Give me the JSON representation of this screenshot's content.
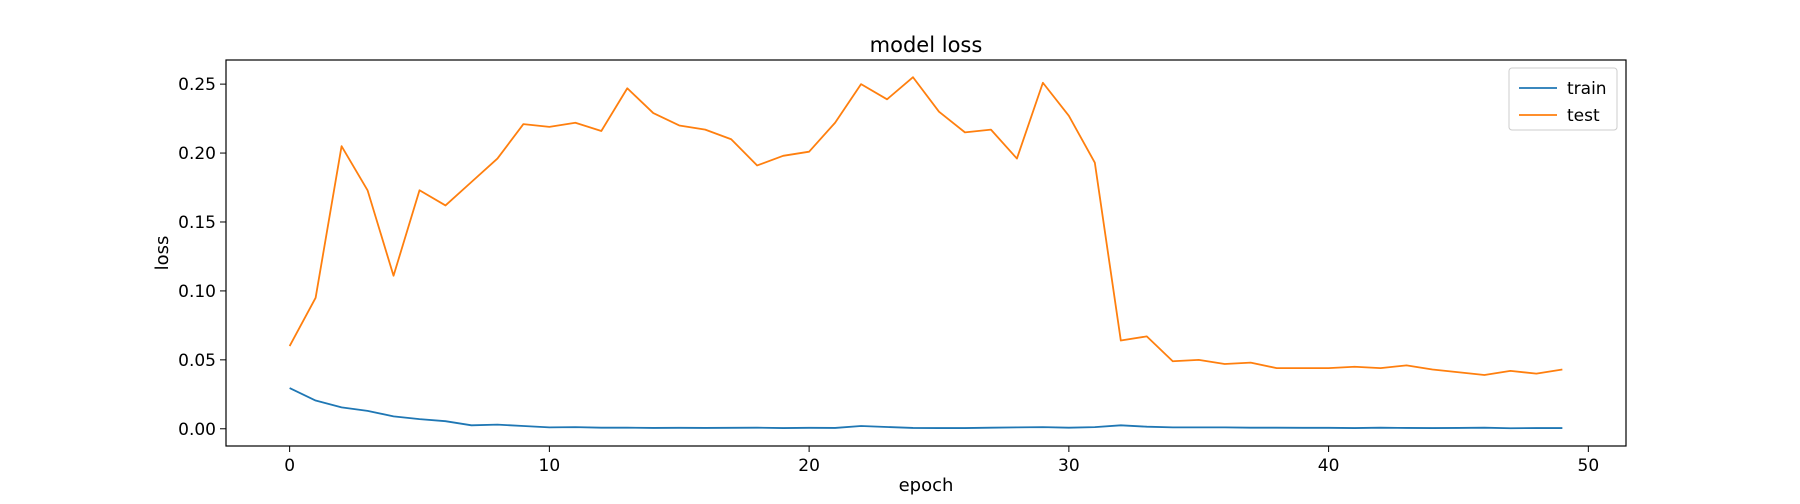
{
  "chart_data": {
    "type": "line",
    "title": "model loss",
    "xlabel": "epoch",
    "ylabel": "loss",
    "xlim": [
      -2.45,
      51.45
    ],
    "ylim": [
      -0.0125,
      0.2675
    ],
    "xticks": [
      0,
      10,
      20,
      30,
      40,
      50
    ],
    "yticks": [
      0.0,
      0.05,
      0.1,
      0.15,
      0.2,
      0.25
    ],
    "ytick_labels": [
      "0.00",
      "0.05",
      "0.10",
      "0.15",
      "0.20",
      "0.25"
    ],
    "legend_position": "top-right",
    "grid": false,
    "x": [
      0,
      1,
      2,
      3,
      4,
      5,
      6,
      7,
      8,
      9,
      10,
      11,
      12,
      13,
      14,
      15,
      16,
      17,
      18,
      19,
      20,
      21,
      22,
      23,
      24,
      25,
      26,
      27,
      28,
      29,
      30,
      31,
      32,
      33,
      34,
      35,
      36,
      37,
      38,
      39,
      40,
      41,
      42,
      43,
      44,
      45,
      46,
      47,
      48,
      49
    ],
    "series": [
      {
        "name": "train",
        "color": "#1f77b4",
        "values": [
          0.0295,
          0.0205,
          0.0155,
          0.013,
          0.009,
          0.007,
          0.0055,
          0.0025,
          0.003,
          0.002,
          0.001,
          0.0012,
          0.0008,
          0.0008,
          0.0006,
          0.0007,
          0.0006,
          0.0007,
          0.0008,
          0.0005,
          0.0007,
          0.0006,
          0.002,
          0.0013,
          0.0006,
          0.0005,
          0.0005,
          0.0008,
          0.001,
          0.0012,
          0.0008,
          0.0012,
          0.0025,
          0.0015,
          0.001,
          0.001,
          0.001,
          0.0008,
          0.0008,
          0.0007,
          0.0007,
          0.0005,
          0.0008,
          0.0006,
          0.0005,
          0.0006,
          0.0008,
          0.0004,
          0.0005,
          0.0005
        ]
      },
      {
        "name": "test",
        "color": "#ff7f0e",
        "values": [
          0.06,
          0.095,
          0.205,
          0.173,
          0.111,
          0.173,
          0.162,
          0.179,
          0.196,
          0.221,
          0.219,
          0.222,
          0.216,
          0.247,
          0.229,
          0.22,
          0.217,
          0.21,
          0.191,
          0.198,
          0.201,
          0.222,
          0.25,
          0.239,
          0.255,
          0.23,
          0.215,
          0.217,
          0.196,
          0.251,
          0.227,
          0.193,
          0.064,
          0.067,
          0.049,
          0.05,
          0.047,
          0.048,
          0.044,
          0.044,
          0.044,
          0.045,
          0.044,
          0.046,
          0.043,
          0.041,
          0.039,
          0.042,
          0.04,
          0.043
        ]
      }
    ]
  }
}
